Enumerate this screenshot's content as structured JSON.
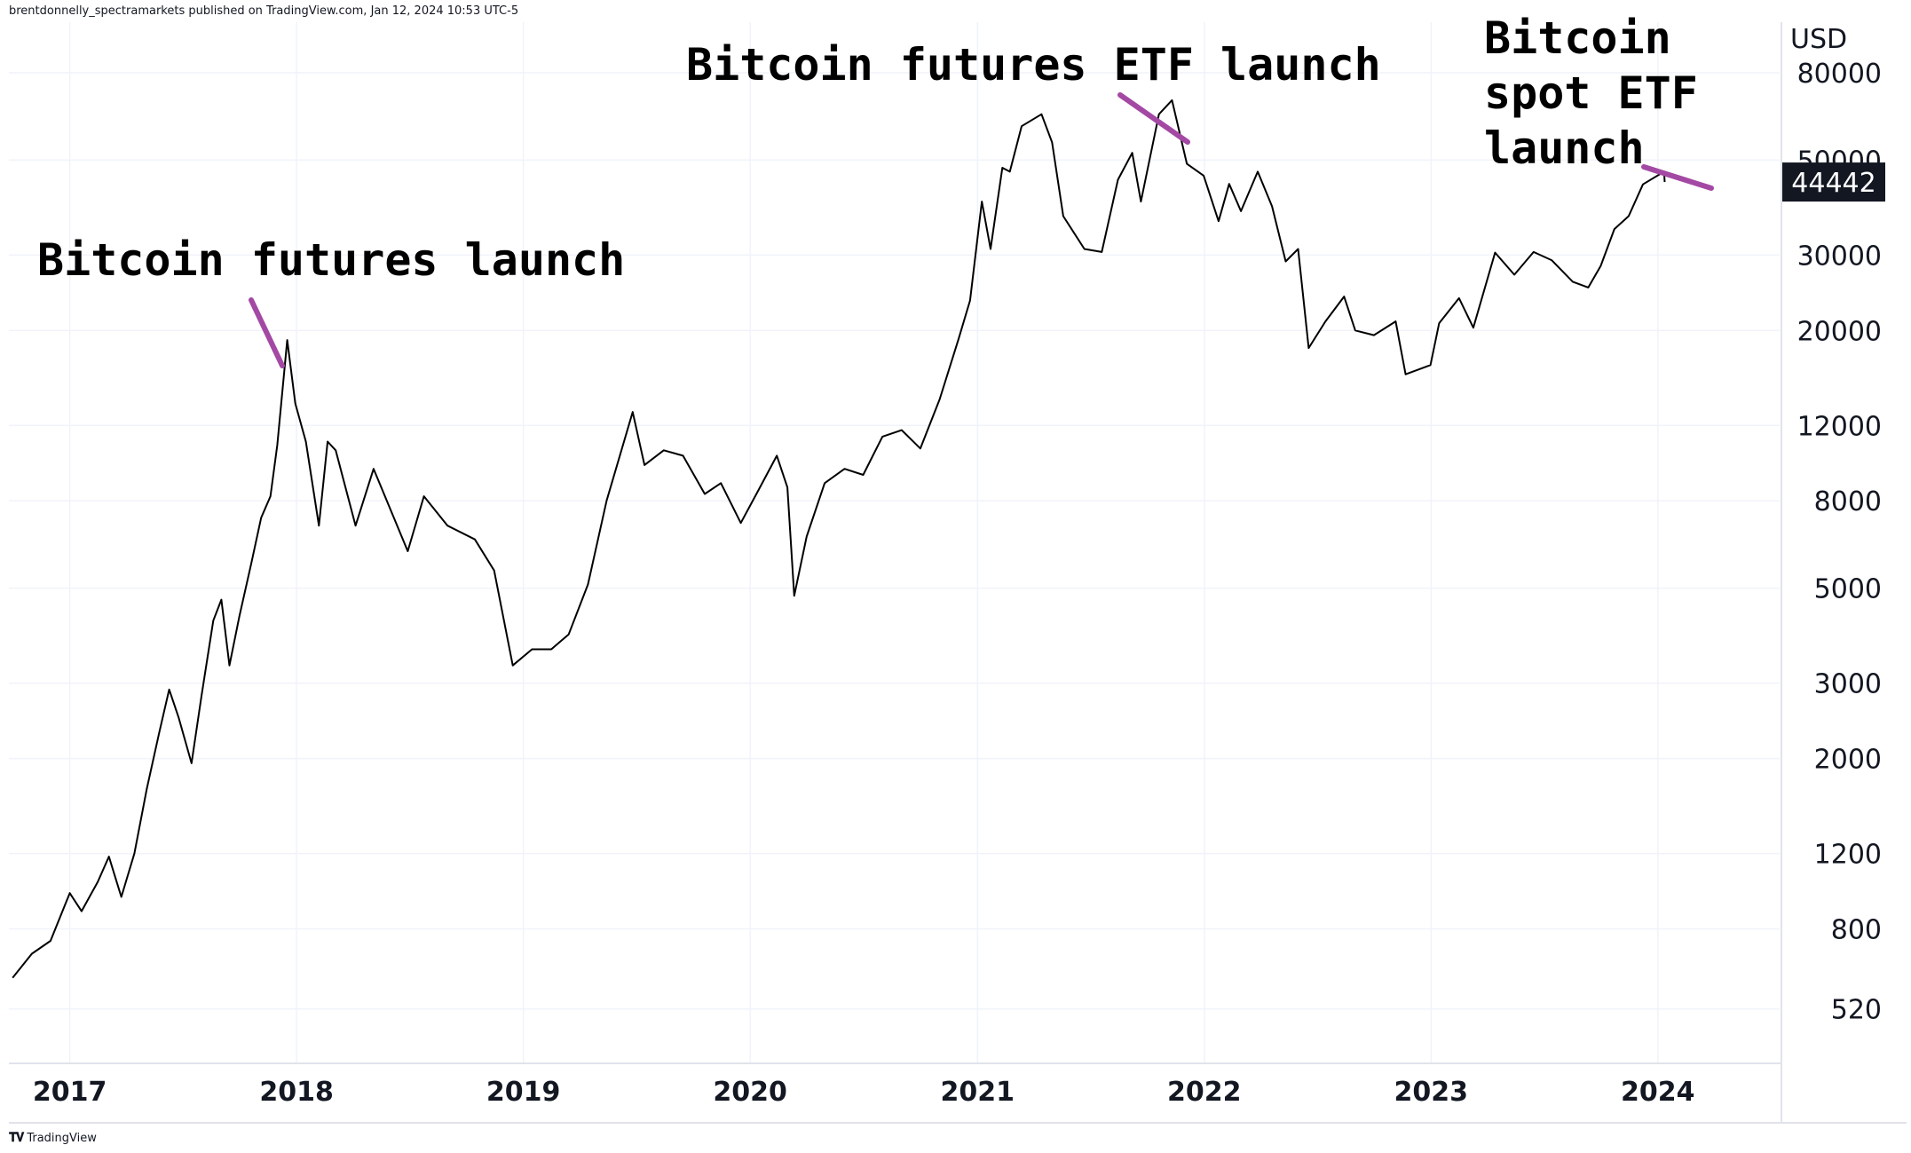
{
  "attribution": "brentdonnelly_spectramarkets published on TradingView.com, Jan 12, 2024 10:53 UTC-5",
  "footer": {
    "logo_text": "TradingView",
    "logo_icon": "tradingview-logo-icon"
  },
  "colors": {
    "price_line": "#000000",
    "annotation_pointer": "#a349a4",
    "grid": "#f0f3fa",
    "axis_border": "#e0e3eb",
    "last_price_bg": "#131722",
    "last_price_text": "#ffffff"
  },
  "chart_data": {
    "type": "line",
    "title": "",
    "currency": "USD",
    "scale": "log",
    "ylim": [
      390,
      105000
    ],
    "y_ticks": [
      520,
      800,
      1200,
      2000,
      3000,
      5000,
      8000,
      12000,
      20000,
      30000,
      50000,
      80000
    ],
    "x_ticks": [
      "2017",
      "2018",
      "2019",
      "2020",
      "2021",
      "2022",
      "2023",
      "2024"
    ],
    "xlim": [
      "2016-09-25",
      "2024-07-15"
    ],
    "grid": true,
    "last_price": "44442",
    "series": [
      {
        "x": [
          "2016-10-01",
          "2016-11-01",
          "2016-12-01",
          "2017-01-01",
          "2017-01-20",
          "2017-02-15",
          "2017-03-05",
          "2017-03-25",
          "2017-04-15",
          "2017-05-05",
          "2017-05-25",
          "2017-06-10",
          "2017-06-25",
          "2017-07-16",
          "2017-08-01",
          "2017-08-20",
          "2017-09-02",
          "2017-09-15",
          "2017-10-01",
          "2017-10-20",
          "2017-11-05",
          "2017-11-20",
          "2017-12-01",
          "2017-12-17",
          "2017-12-30",
          "2018-01-16",
          "2018-02-06",
          "2018-02-20",
          "2018-03-05",
          "2018-04-06",
          "2018-05-05",
          "2018-06-29",
          "2018-07-25",
          "2018-09-01",
          "2018-10-15",
          "2018-11-15",
          "2018-12-15",
          "2019-01-15",
          "2019-02-15",
          "2019-03-15",
          "2019-04-15",
          "2019-05-15",
          "2019-06-26",
          "2019-07-15",
          "2019-08-15",
          "2019-09-15",
          "2019-10-20",
          "2019-11-15",
          "2019-12-17",
          "2020-01-15",
          "2020-02-13",
          "2020-03-01",
          "2020-03-12",
          "2020-04-01",
          "2020-04-30",
          "2020-06-01",
          "2020-07-01",
          "2020-08-01",
          "2020-09-01",
          "2020-10-01",
          "2020-11-01",
          "2020-12-01",
          "2020-12-20",
          "2021-01-08",
          "2021-01-22",
          "2021-02-10",
          "2021-02-22",
          "2021-03-13",
          "2021-04-14",
          "2021-05-01",
          "2021-05-19",
          "2021-06-22",
          "2021-07-20",
          "2021-08-15",
          "2021-09-07",
          "2021-09-21",
          "2021-10-20",
          "2021-11-10",
          "2021-12-04",
          "2021-12-31",
          "2022-01-24",
          "2022-02-10",
          "2022-03-01",
          "2022-03-28",
          "2022-04-20",
          "2022-05-12",
          "2022-06-01",
          "2022-06-18",
          "2022-07-15",
          "2022-08-14",
          "2022-09-01",
          "2022-10-01",
          "2022-11-05",
          "2022-11-21",
          "2022-12-31",
          "2023-01-14",
          "2023-02-15",
          "2023-03-10",
          "2023-04-14",
          "2023-05-15",
          "2023-06-15",
          "2023-07-14",
          "2023-08-17",
          "2023-09-11",
          "2023-10-01",
          "2023-10-23",
          "2023-11-15",
          "2023-12-08",
          "2024-01-11",
          "2024-01-12"
        ],
        "values": [
          615,
          700,
          750,
          970,
          880,
          1030,
          1180,
          950,
          1200,
          1700,
          2300,
          2900,
          2500,
          1950,
          2800,
          4200,
          4700,
          3300,
          4300,
          5700,
          7300,
          8200,
          10800,
          19000,
          13500,
          11000,
          7000,
          11000,
          10500,
          7000,
          9500,
          6100,
          8200,
          7000,
          6500,
          5500,
          3300,
          3600,
          3600,
          3900,
          5100,
          8000,
          12900,
          9700,
          10500,
          10200,
          8300,
          8800,
          7100,
          8500,
          10200,
          8600,
          4800,
          6600,
          8800,
          9500,
          9200,
          11300,
          11700,
          10600,
          13800,
          19000,
          23500,
          40000,
          31000,
          48000,
          47000,
          60000,
          64000,
          55000,
          37000,
          31000,
          30500,
          45000,
          52000,
          40000,
          64000,
          69000,
          49000,
          46000,
          36000,
          44000,
          38000,
          47000,
          39000,
          29000,
          31000,
          18200,
          21000,
          24000,
          20000,
          19500,
          21000,
          15800,
          16600,
          20800,
          23800,
          20300,
          30400,
          27000,
          30500,
          29200,
          26000,
          25200,
          28300,
          34500,
          37000,
          43900,
          47000,
          44442
        ]
      }
    ],
    "annotations": [
      {
        "text": "Bitcoin futures launch",
        "date": "2017-12-17"
      },
      {
        "text": "Bitcoin futures ETF launch",
        "date": "2021-10-19"
      },
      {
        "text": "Bitcoin spot ETF launch",
        "lines": [
          "Bitcoin",
          "spot ETF",
          "launch"
        ],
        "date": "2024-01-11"
      }
    ]
  }
}
